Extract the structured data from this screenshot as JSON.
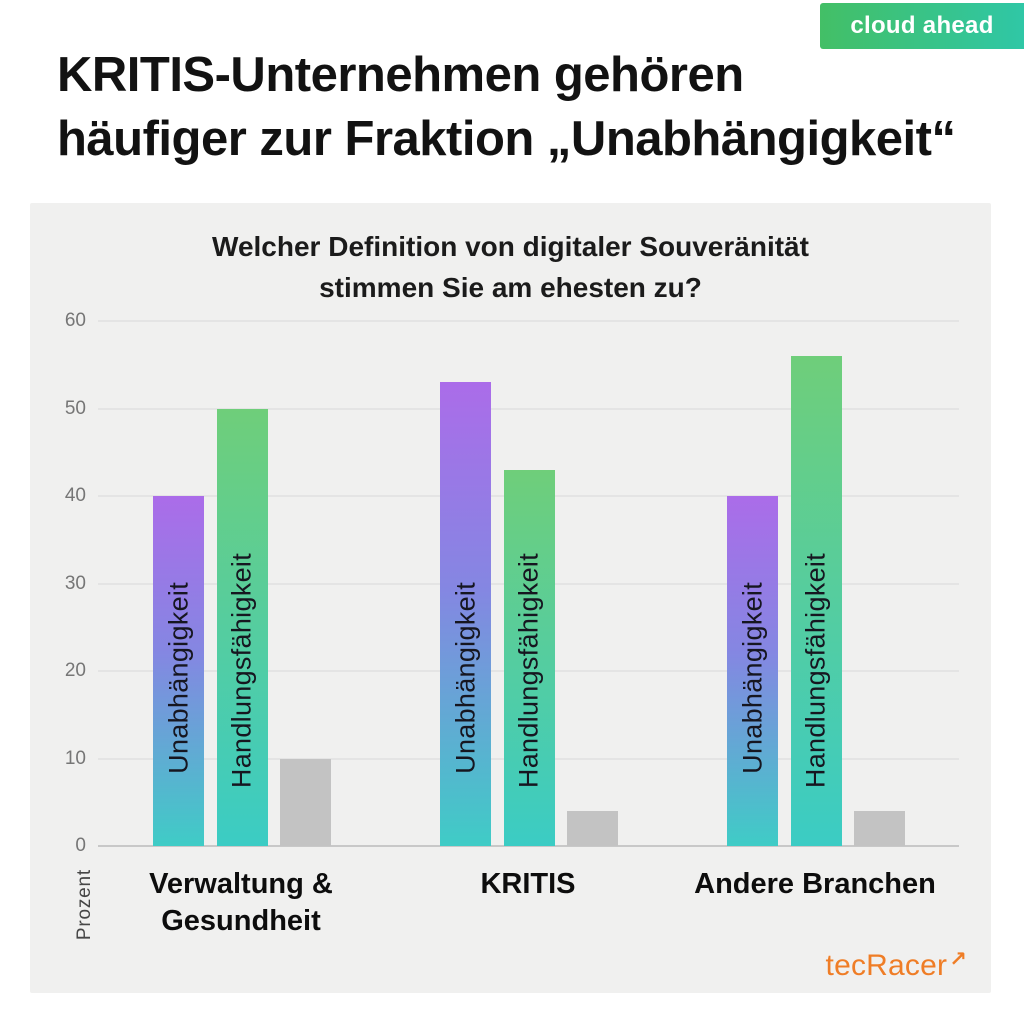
{
  "page": {
    "badge": {
      "label": "cloud ahead",
      "gradient_from": "#43bf66",
      "gradient_to": "#2fc7a6"
    },
    "title_line1": "KRITIS-Unternehmen gehören",
    "title_line2": "häufiger zur Fraktion „Unabhängigkeit“",
    "footer_logo": {
      "text": "tecRacer",
      "arrow_icon": "↗",
      "color": "#ef7d26"
    }
  },
  "chart_data": {
    "type": "bar",
    "title": "Welcher Definition von digitaler Souveränität stimmen Sie am ehesten zu?",
    "title_lines": [
      "Welcher Definition von digitaler Souveränität",
      "stimmen Sie am ehesten zu?"
    ],
    "categories": [
      "Verwaltung & Gesundheit",
      "KRITIS",
      "Andere Branchen"
    ],
    "category_lines": [
      [
        "Verwaltung &",
        "Gesundheit"
      ],
      [
        "KRITIS"
      ],
      [
        "Andere Branchen"
      ]
    ],
    "series": [
      {
        "name": "Unabhängigkeit",
        "values": [
          40,
          53,
          40
        ],
        "color_top": "#ab6ce9",
        "color_mid": "#8487e2",
        "color_bottom": "#3fccc6",
        "label_inside_bar": true
      },
      {
        "name": "Handlungsfähigkeit",
        "values": [
          50,
          43,
          56
        ],
        "color_top": "#6fce7a",
        "color_bottom": "#3bccc4",
        "label_inside_bar": true
      },
      {
        "name": "",
        "values": [
          10,
          4,
          4
        ],
        "color_top": "#c3c3c3",
        "color_bottom": "#c3c3c3",
        "label_inside_bar": false
      }
    ],
    "ylabel": "Prozent",
    "xlabel": "",
    "ylim": [
      0,
      60
    ],
    "yticks": [
      0,
      10,
      20,
      30,
      40,
      50,
      60
    ],
    "grid": true,
    "legend_position": "none (series labels printed vertically inside bars)",
    "panel_background": "#f0f0ef",
    "gridline_color": "#e4e4e4",
    "zero_line_color": "#c8c8c8"
  }
}
